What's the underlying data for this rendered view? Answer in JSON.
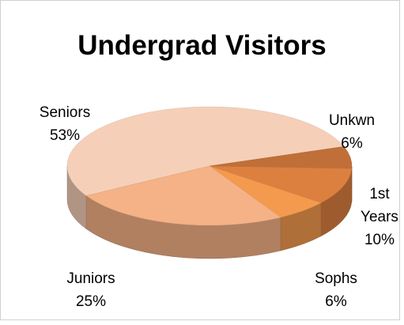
{
  "chart_data": {
    "type": "pie",
    "title": "Undergrad Visitors",
    "categories": [
      "Seniors",
      "Unkwn",
      "1st Years",
      "Sophs",
      "Juniors"
    ],
    "values": [
      53,
      6,
      10,
      6,
      25
    ],
    "value_labels": [
      "53%",
      "6%",
      "10%",
      "6%",
      "25%"
    ],
    "colors": [
      "#f6cfb8",
      "#c06f38",
      "#dc8040",
      "#f39a4e",
      "#f5b287"
    ]
  }
}
